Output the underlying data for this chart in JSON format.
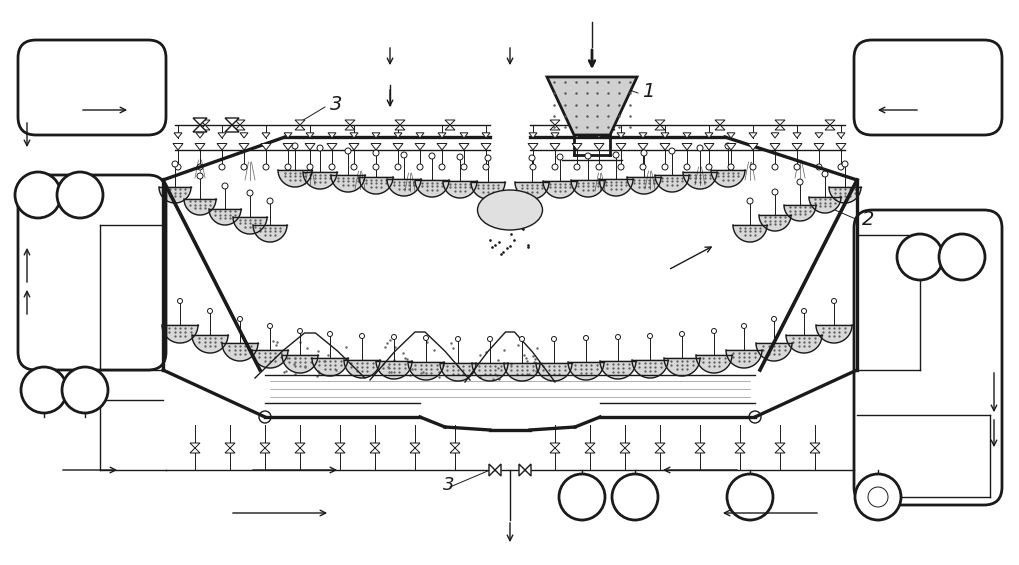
{
  "bg_color": "#ffffff",
  "lc": "#1a1a1a",
  "lw": 2.0,
  "lw2": 1.5,
  "lw1": 1.0,
  "lw0": 0.7,
  "fig_width": 10.2,
  "fig_height": 5.65,
  "label1": "1",
  "label2": "2",
  "label3": "3"
}
